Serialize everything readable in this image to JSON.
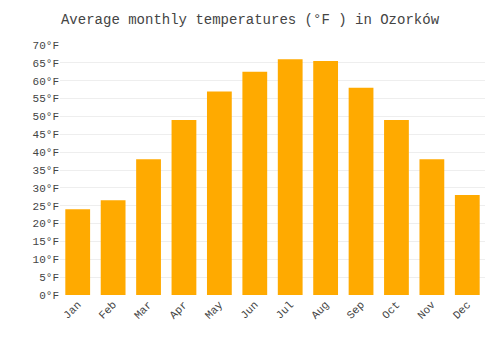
{
  "chart_data": {
    "type": "bar",
    "title": "Average monthly temperatures (°F ) in Ozorków",
    "categories": [
      "Jan",
      "Feb",
      "Mar",
      "Apr",
      "May",
      "Jun",
      "Jul",
      "Aug",
      "Sep",
      "Oct",
      "Nov",
      "Dec"
    ],
    "values": [
      24,
      26.5,
      38,
      49,
      57,
      62.5,
      66,
      65.5,
      58,
      49,
      38,
      28
    ],
    "color": "#FFAA00",
    "ylim": [
      0,
      70
    ],
    "yticks": [
      {
        "value": 0,
        "label": "0°F"
      },
      {
        "value": 5,
        "label": "5°F"
      },
      {
        "value": 10,
        "label": "10°F"
      },
      {
        "value": 15,
        "label": "15°F"
      },
      {
        "value": 20,
        "label": "20°F"
      },
      {
        "value": 25,
        "label": "25°F"
      },
      {
        "value": 30,
        "label": "30°F"
      },
      {
        "value": 35,
        "label": "35°F"
      },
      {
        "value": 40,
        "label": "40°F"
      },
      {
        "value": 45,
        "label": "45°F"
      },
      {
        "value": 50,
        "label": "50°F"
      },
      {
        "value": 55,
        "label": "55°F"
      },
      {
        "value": 60,
        "label": "60°F"
      },
      {
        "value": 65,
        "label": "65°F"
      },
      {
        "value": 70,
        "label": "70°F"
      }
    ],
    "grid": true
  }
}
